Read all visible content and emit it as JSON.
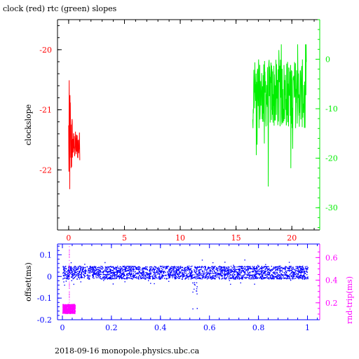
{
  "title": "clock (red) rtc (green) slopes",
  "footer": "2018-09-16 monopole.physics.ubc.ca",
  "colors": {
    "red": "#ff0000",
    "green": "#00ee00",
    "blue": "#0000ff",
    "magenta": "#ff00ff",
    "axis": "#000000"
  },
  "chart_data": [
    {
      "type": "line",
      "title": "clock (red) rtc (green) slopes",
      "ylabel": "clockslope",
      "xlim": [
        -1,
        22.5
      ],
      "ylim": [
        -23,
        -19.5
      ],
      "y2lim": [
        -34.5,
        8
      ],
      "x_ticks": [
        0,
        5,
        10,
        15,
        20
      ],
      "y_ticks": [
        -20,
        -21,
        -22
      ],
      "y2_ticks": [
        0,
        -10,
        -20,
        -30
      ],
      "series": [
        {
          "color": "red",
          "axis": "left",
          "x_range": [
            0,
            1
          ],
          "center": -21.6,
          "envelope": [
            -22.8,
            -19.4
          ]
        },
        {
          "color": "green",
          "axis": "right",
          "x_range": [
            16.5,
            21.3
          ],
          "center": -7,
          "envelope": [
            -32,
            3
          ]
        }
      ]
    },
    {
      "type": "scatter",
      "ylabel": "offset(ms)",
      "y2label": "rnd-trip(ms)",
      "xlim": [
        -0.02,
        1.05
      ],
      "ylim": [
        -0.2,
        0.15
      ],
      "y2lim": [
        0.05,
        0.72
      ],
      "x_ticks": [
        0,
        0.2,
        0.4,
        0.6,
        0.8,
        1
      ],
      "y_ticks": [
        0.1,
        0,
        -0.1,
        -0.2
      ],
      "y2_ticks": [
        0.6,
        0.4,
        0.2
      ],
      "series": [
        {
          "color": "blue",
          "axis": "left",
          "x_range": [
            0,
            1
          ],
          "center": 0.02
        },
        {
          "color": "magenta",
          "axis": "right",
          "x_range": [
            0,
            0.05
          ],
          "center": 0.15,
          "spike_y2": 0.7
        }
      ]
    }
  ]
}
